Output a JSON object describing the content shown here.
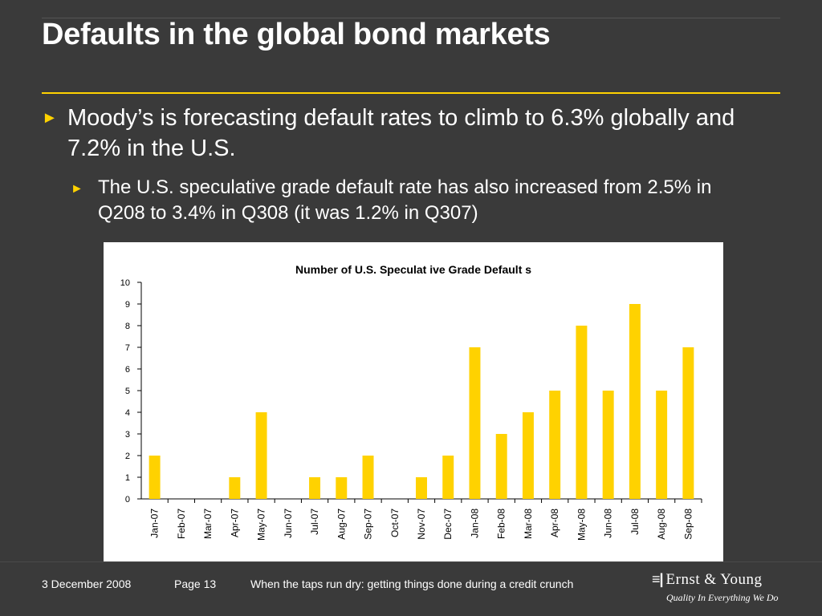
{
  "slide": {
    "title": "Defaults in the global bond markets",
    "bullets": [
      {
        "marker": "►",
        "text": "Moody’s is forecasting default rates to climb to 6.3% globally and 7.2% in the U.S."
      },
      {
        "marker": "►",
        "text": "The U.S. speculative grade default rate has also increased from 2.5% in Q208 to 3.4% in Q308 (it was 1.2% in Q307)"
      }
    ],
    "accent_color": "#ffd200",
    "background_color": "#3a3a3a"
  },
  "chart_data": {
    "type": "bar",
    "title": "Number of U.S. Speculat ive Grade Default s",
    "xlabel": "",
    "ylabel": "",
    "ylim": [
      0,
      10
    ],
    "yticks": [
      0,
      1,
      2,
      3,
      4,
      5,
      6,
      7,
      8,
      9,
      10
    ],
    "categories": [
      "Jan-07",
      "Feb-07",
      "Mar-07",
      "Apr-07",
      "May-07",
      "Jun-07",
      "Jul-07",
      "Aug-07",
      "Sep-07",
      "Oct-07",
      "Nov-07",
      "Dec-07",
      "Jan-08",
      "Feb-08",
      "Mar-08",
      "Apr-08",
      "May-08",
      "Jun-08",
      "Jul-08",
      "Aug-08",
      "Sep-08"
    ],
    "values": [
      2,
      0,
      0,
      1,
      4,
      0,
      1,
      1,
      2,
      0,
      1,
      2,
      7,
      3,
      4,
      5,
      8,
      5,
      9,
      5,
      7
    ],
    "bar_color": "#ffd200",
    "grid": false,
    "legend": "none"
  },
  "footer": {
    "date": "3 December 2008",
    "page": "Page 13",
    "subject": "When the taps run dry: getting things done during a credit crunch",
    "logo_mark": "≡|",
    "logo_name": "Ernst & Young",
    "logo_tagline": "Quality In Everything We Do"
  }
}
